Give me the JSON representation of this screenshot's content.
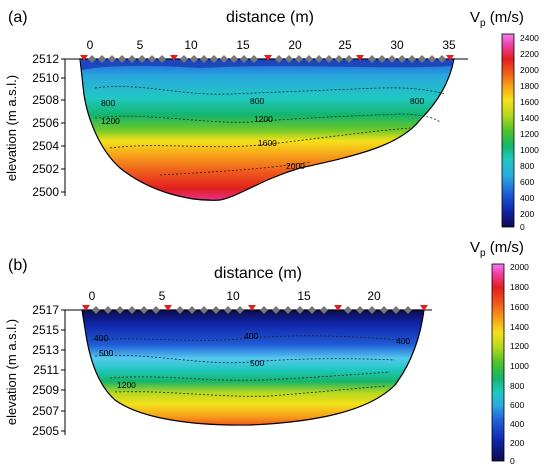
{
  "panels": [
    {
      "id": "a",
      "label": "(a)",
      "x_label": "distance (m)",
      "y_label": "elevation (m a.s.l.)",
      "x_ticks": [
        "0",
        "5",
        "10",
        "15",
        "20",
        "25",
        "30",
        "35"
      ],
      "y_ticks": [
        "2512",
        "2510",
        "2508",
        "2506",
        "2504",
        "2502",
        "2500"
      ],
      "contours": [
        "800",
        "800",
        "800",
        "1200",
        "1200",
        "1600",
        "2000"
      ],
      "colorbar": {
        "title": "V",
        "title_sub": "p",
        "title_unit": " (m/s)",
        "ticks": [
          "2400",
          "2200",
          "2000",
          "1800",
          "1600",
          "1400",
          "1200",
          "1000",
          "800",
          "600",
          "400",
          "200",
          "0"
        ]
      }
    },
    {
      "id": "b",
      "label": "(b)",
      "x_label": "distance (m)",
      "y_label": "elevation (m a.s.l.)",
      "x_ticks": [
        "0",
        "5",
        "10",
        "15",
        "20"
      ],
      "y_ticks": [
        "2517",
        "2515",
        "2513",
        "2511",
        "2509",
        "2507",
        "2505"
      ],
      "contours": [
        "400",
        "400",
        "400",
        "500",
        "500",
        "1200"
      ],
      "colorbar": {
        "title": "V",
        "title_sub": "p",
        "title_unit": " (m/s)",
        "ticks": [
          "2000",
          "1800",
          "1600",
          "1400",
          "1200",
          "1000",
          "800",
          "600",
          "400",
          "200",
          "0"
        ]
      }
    }
  ],
  "colors": {
    "scale_a": [
      "#0b0b4a",
      "#1024a8",
      "#1f5bd6",
      "#2aa8e0",
      "#20c8c0",
      "#14b56a",
      "#4fc32a",
      "#b8d81e",
      "#f4e11a",
      "#f7a21a",
      "#f05a1c",
      "#e11f1f",
      "#ee3fa0",
      "#f07cf5"
    ],
    "scale_b": [
      "#0b0b4a",
      "#1024a8",
      "#1f5bd6",
      "#2aa8e0",
      "#20c8c0",
      "#14b56a",
      "#4fc32a",
      "#b8d81e",
      "#f4e11a",
      "#f7a21a",
      "#f05a1c",
      "#e11f1f",
      "#ee3fa0",
      "#f07cf5"
    ]
  }
}
